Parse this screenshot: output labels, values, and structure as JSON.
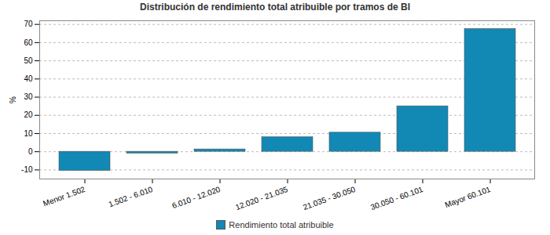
{
  "chart_data": {
    "type": "bar",
    "title": "Distribución de rendimiento total atribuible por tramos de BI",
    "y_label": "%",
    "categories": [
      "Menor 1.502",
      "1.502 - 6.010",
      "6.010 - 12.020",
      "12.020 - 21.035",
      "21.035 - 30.050",
      "30.050 - 60.101",
      "Mayor 60.101"
    ],
    "series": [
      {
        "name": "Rendimiento total atribuible",
        "color": "#1289b5",
        "values": [
          -10.5,
          -1,
          1.3,
          8,
          10.5,
          25,
          67.5
        ]
      }
    ],
    "ylim": [
      -15,
      72
    ],
    "yticks": [
      -10,
      0,
      10,
      20,
      30,
      40,
      50,
      60,
      70
    ],
    "grid": true,
    "legend": "bottom"
  }
}
